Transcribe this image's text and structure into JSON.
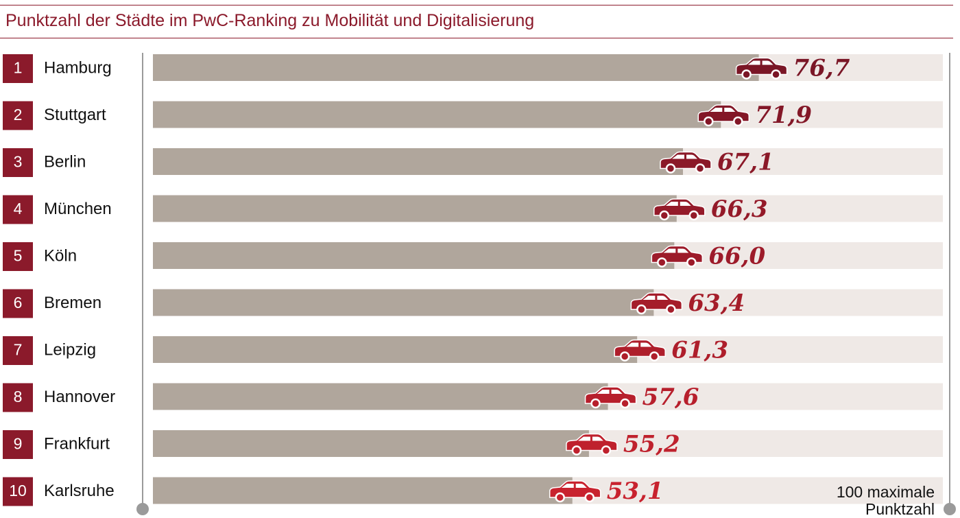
{
  "title": "Punktzahl der Städte im PwC-Ranking zu Mobilität und Digitalisierung",
  "max_label": "100 maximale\nPunktzahl",
  "chart_data": {
    "type": "bar",
    "orientation": "horizontal",
    "title": "Punktzahl der Städte im PwC-Ranking zu Mobilität und Digitalisierung",
    "ranks": [
      "1",
      "2",
      "3",
      "4",
      "5",
      "6",
      "7",
      "8",
      "9",
      "10"
    ],
    "categories": [
      "Hamburg",
      "Stuttgart",
      "Berlin",
      "München",
      "Köln",
      "Bremen",
      "Leipzig",
      "Hannover",
      "Frankfurt",
      "Karlsruhe"
    ],
    "values": [
      76.7,
      71.9,
      67.1,
      66.3,
      66.0,
      63.4,
      61.3,
      57.6,
      55.2,
      53.1
    ],
    "value_labels": [
      "76,7",
      "71,9",
      "67,1",
      "66,3",
      "66,0",
      "63,4",
      "61,3",
      "57,6",
      "55,2",
      "53,1"
    ],
    "xlim": [
      0,
      100
    ],
    "grid": false,
    "legend": "none",
    "marker_icon": "car-icon",
    "colors": {
      "rank_box": "#8b1a2b",
      "bar_fill": "#b0a69c",
      "bar_track": "#efe9e6",
      "axis": "#9a9a9a",
      "marker_gradient": [
        "#7a1626",
        "#c8222e"
      ]
    }
  }
}
